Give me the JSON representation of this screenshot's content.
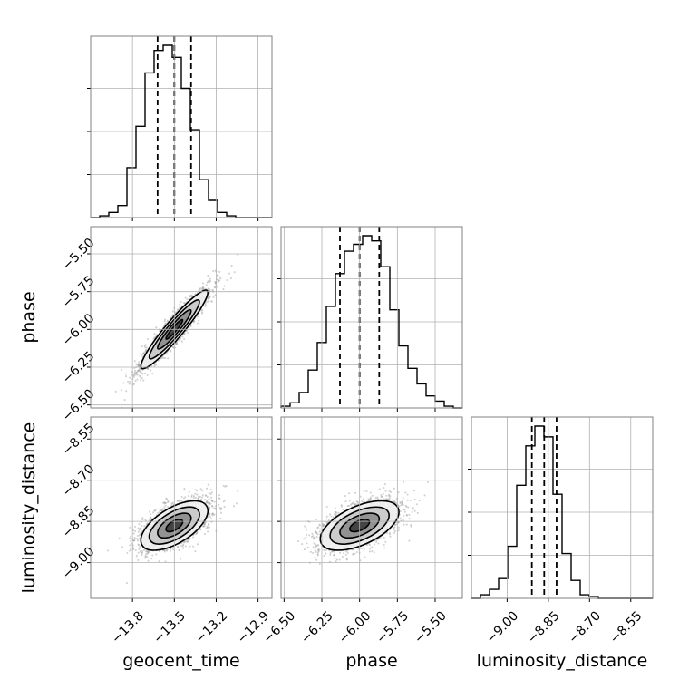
{
  "chart_data": {
    "type": "corner",
    "parameters": [
      "geocent_time",
      "phase",
      "luminosity_distance"
    ],
    "axes": {
      "geocent_time": {
        "range": [
          -14.1,
          -12.8
        ],
        "ticks": [
          -13.8,
          -13.5,
          -13.2,
          -12.9
        ],
        "tick_labels": [
          "−13.8",
          "−13.5",
          "−13.2",
          "−12.9"
        ]
      },
      "phase": {
        "range": [
          -6.52,
          -5.32
        ],
        "ticks": [
          -6.5,
          -6.25,
          -6.0,
          -5.75,
          -5.5
        ],
        "tick_labels": [
          "−6.50",
          "−6.25",
          "−6.00",
          "−5.75",
          "−5.50"
        ]
      },
      "luminosity_distance": {
        "range": [
          -9.13,
          -8.47
        ],
        "ticks": [
          -9.0,
          -8.85,
          -8.7,
          -8.55
        ],
        "tick_labels": [
          "−9.00",
          "−8.85",
          "−8.70",
          "−8.55"
        ]
      }
    },
    "histograms": [
      {
        "param": "geocent_time",
        "bin_edges": [
          -14.1,
          -14.035,
          -13.97,
          -13.905,
          -13.84,
          -13.775,
          -13.71,
          -13.645,
          -13.58,
          -13.515,
          -13.45,
          -13.385,
          -13.32,
          -13.255,
          -13.19,
          -13.125,
          -13.06,
          -12.995,
          -12.93,
          -12.865,
          -12.8
        ],
        "counts": [
          0.0,
          0.01,
          0.03,
          0.07,
          0.29,
          0.53,
          0.84,
          0.97,
          1.0,
          0.93,
          0.75,
          0.51,
          0.22,
          0.1,
          0.03,
          0.01,
          0.0,
          0.0,
          0.0,
          0.0
        ],
        "quantiles": [
          -13.62,
          -13.5,
          -13.38
        ]
      },
      {
        "param": "phase",
        "bin_edges": [
          -6.52,
          -6.46,
          -6.4,
          -6.34,
          -6.28,
          -6.22,
          -6.16,
          -6.1,
          -6.04,
          -5.98,
          -5.92,
          -5.86,
          -5.8,
          -5.74,
          -5.68,
          -5.62,
          -5.56,
          -5.5,
          -5.44,
          -5.38,
          -5.32
        ],
        "counts": [
          0.01,
          0.03,
          0.09,
          0.22,
          0.38,
          0.59,
          0.78,
          0.91,
          0.95,
          1.0,
          0.97,
          0.82,
          0.57,
          0.36,
          0.23,
          0.14,
          0.07,
          0.04,
          0.01,
          0.0
        ],
        "quantiles": [
          -6.13,
          -6.0,
          -5.87
        ]
      },
      {
        "param": "luminosity_distance",
        "bin_edges": [
          -9.13,
          -9.097,
          -9.064,
          -9.031,
          -8.998,
          -8.965,
          -8.932,
          -8.899,
          -8.866,
          -8.833,
          -8.8,
          -8.767,
          -8.734,
          -8.701,
          -8.668,
          -8.635,
          -8.602,
          -8.569,
          -8.536,
          -8.503,
          -8.47
        ],
        "counts": [
          0.0,
          0.02,
          0.05,
          0.11,
          0.29,
          0.63,
          0.85,
          0.96,
          0.9,
          0.58,
          0.25,
          0.1,
          0.02,
          0.01,
          0.0,
          0.0,
          0.0,
          0.0,
          0.0,
          0.0
        ],
        "quantiles": [
          -8.91,
          -8.865,
          -8.82
        ]
      }
    ],
    "correlations": [
      {
        "x": "geocent_time",
        "y": "phase",
        "rho": 0.94
      },
      {
        "x": "geocent_time",
        "y": "luminosity_distance",
        "rho": 0.6
      },
      {
        "x": "phase",
        "y": "luminosity_distance",
        "rho": 0.55
      }
    ],
    "contour_levels_sigma": [
      0.5,
      1.0,
      1.5,
      2.0
    ],
    "grid": true,
    "colors": {
      "hist": "#000000",
      "quantile": "#000000",
      "samples": "#9a9a9a",
      "grid": "#b0b0b0",
      "spine": "#808080"
    }
  }
}
